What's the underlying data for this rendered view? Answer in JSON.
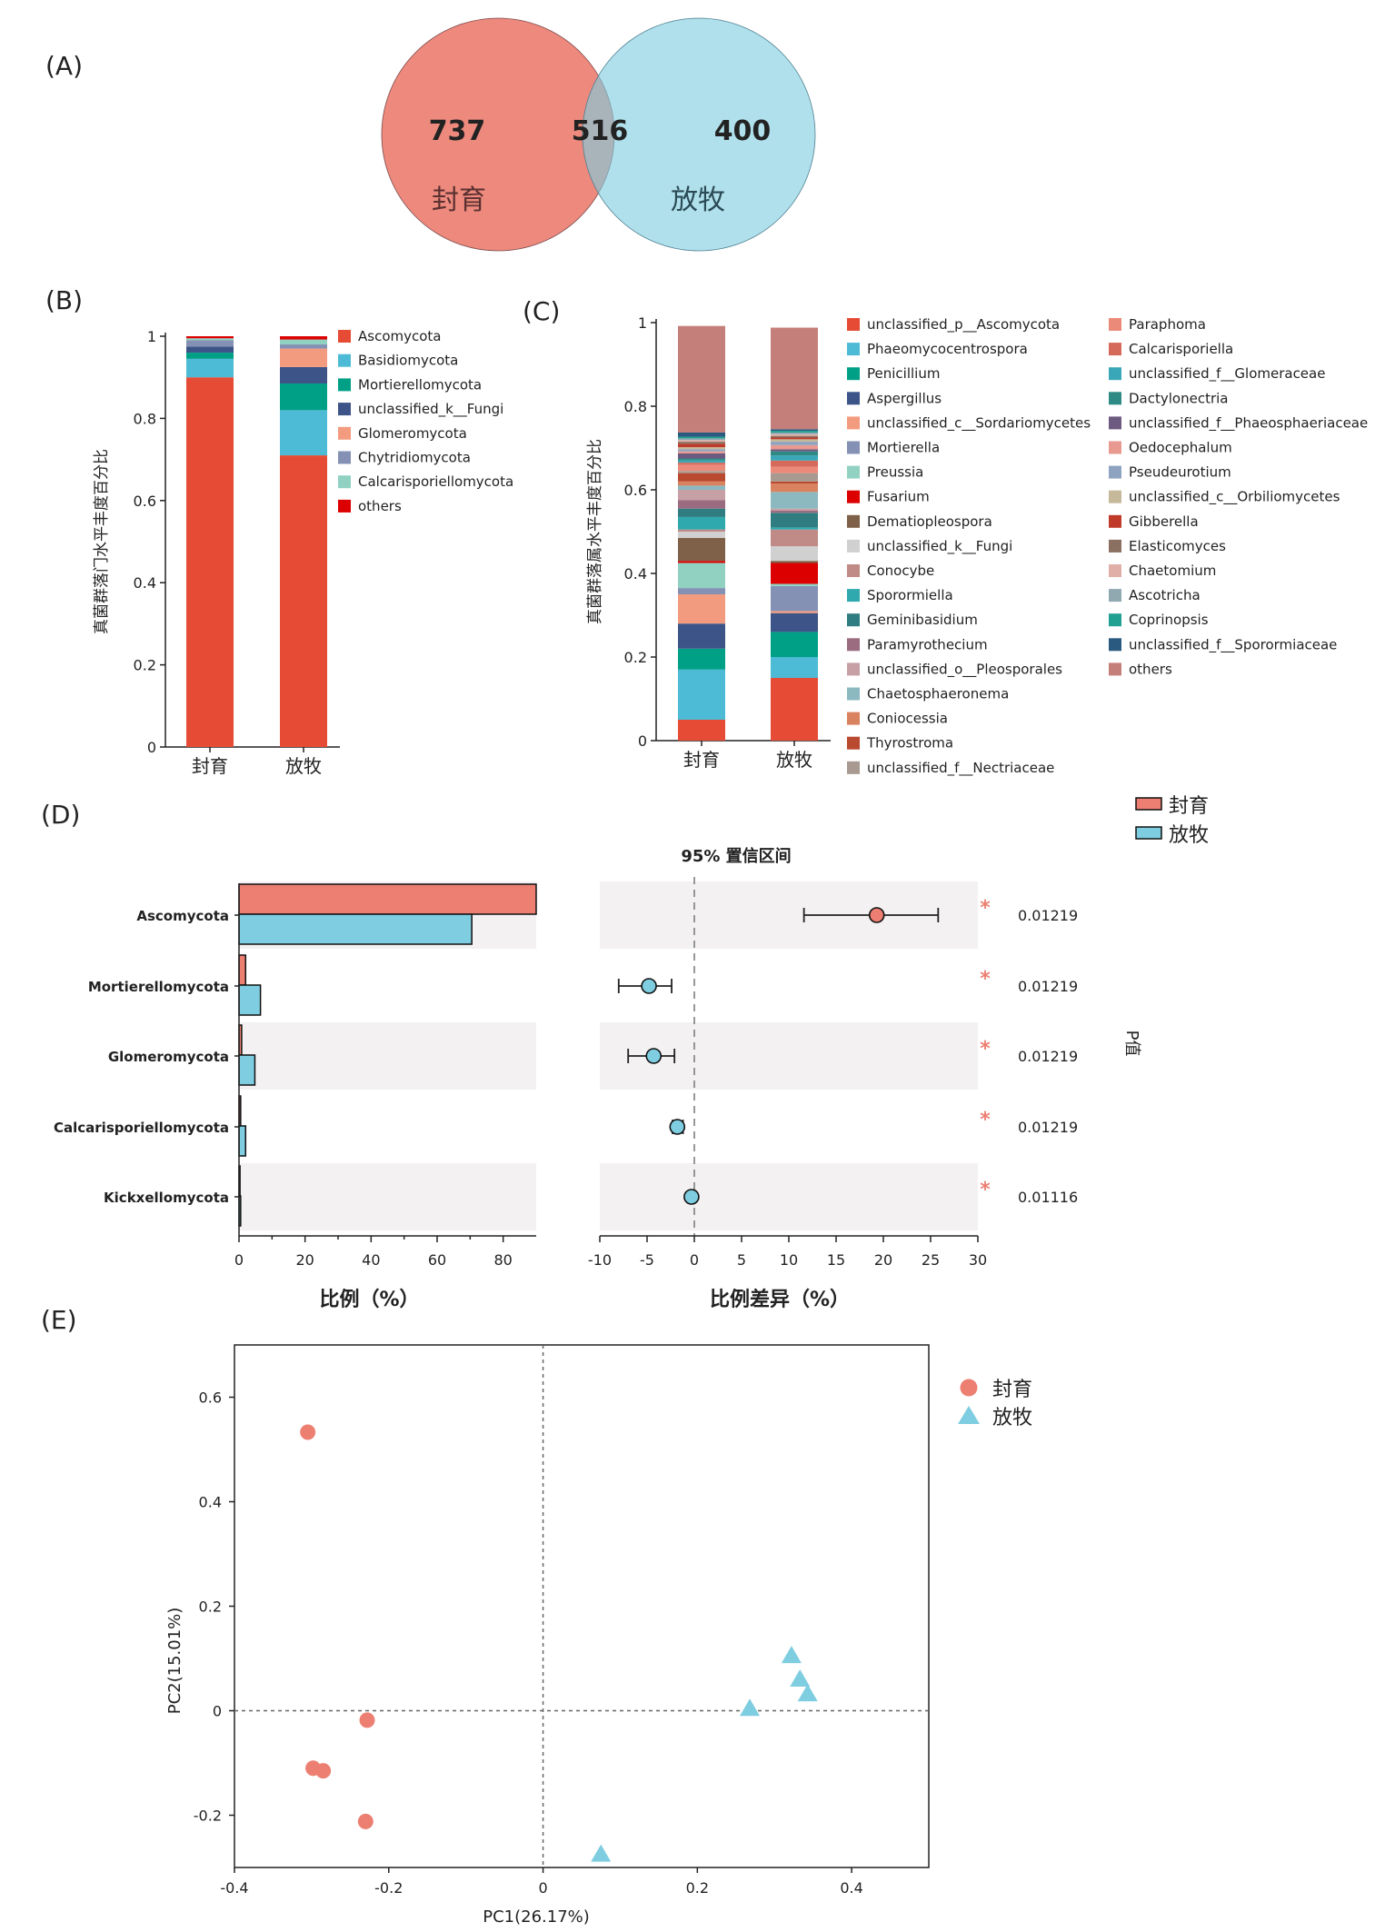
{
  "panels": {
    "A": "(A)",
    "B": "(B)",
    "C": "(C)",
    "D": "(D)",
    "E": "(E)"
  },
  "colors": {
    "fengyu": "#ec7f72",
    "fangmu": "#7fcde0"
  },
  "chart_data": [
    {
      "panel": "A",
      "type": "venn",
      "sets": [
        "封育",
        "放牧"
      ],
      "values": {
        "only_封育": 737,
        "shared": 516,
        "only_放牧": 400
      },
      "colors": [
        "#ec7f72",
        "#7fcde0"
      ]
    },
    {
      "panel": "B",
      "type": "bar",
      "stacked": true,
      "ylabel": "真菌群落门水平丰度百分比",
      "categories": [
        "封育",
        "放牧"
      ],
      "ylim": [
        0,
        1
      ],
      "yticks": [
        0,
        0.2,
        0.4,
        0.6,
        0.8,
        1
      ],
      "ytick_labels": [
        "0",
        "0.2",
        "0.4",
        "0.6",
        "0.8",
        "1"
      ],
      "legend_position": "right",
      "series": [
        {
          "name": "Ascomycota",
          "color": "#e64b35",
          "values": [
            0.9,
            0.71
          ]
        },
        {
          "name": "Basidiomycota",
          "color": "#4dbbd5",
          "values": [
            0.045,
            0.11
          ]
        },
        {
          "name": "Mortierellomycota",
          "color": "#00a087",
          "values": [
            0.015,
            0.065
          ]
        },
        {
          "name": "unclassified_k__Fungi",
          "color": "#3c5488",
          "values": [
            0.015,
            0.04
          ]
        },
        {
          "name": "Glomeromycota",
          "color": "#f39b7f",
          "values": [
            0.0,
            0.045
          ]
        },
        {
          "name": "Chytridiomycota",
          "color": "#8491b4",
          "values": [
            0.015,
            0.01
          ]
        },
        {
          "name": "Calcarisporiellomycota",
          "color": "#91d1c2",
          "values": [
            0.005,
            0.012
          ]
        },
        {
          "name": "others",
          "color": "#dc0000",
          "values": [
            0.005,
            0.008
          ]
        }
      ]
    },
    {
      "panel": "C",
      "type": "bar",
      "stacked": true,
      "ylabel": "真菌群落属水平丰度百分比",
      "categories": [
        "封育",
        "放牧"
      ],
      "ylim": [
        0,
        1
      ],
      "yticks": [
        0,
        0.2,
        0.4,
        0.6,
        0.8,
        1
      ],
      "ytick_labels": [
        "0",
        "0.2",
        "0.4",
        "0.6",
        "0.8",
        "1"
      ],
      "legend_position": "right",
      "series": [
        {
          "name": "unclassified_p__Ascomycota",
          "color": "#e64b35",
          "values": [
            0.05,
            0.15
          ]
        },
        {
          "name": "Phaeomycocentrospora",
          "color": "#4dbbd5",
          "values": [
            0.12,
            0.05
          ]
        },
        {
          "name": "Penicillium",
          "color": "#00a087",
          "values": [
            0.05,
            0.06
          ]
        },
        {
          "name": "Aspergillus",
          "color": "#3c5488",
          "values": [
            0.06,
            0.045
          ]
        },
        {
          "name": "unclassified_c__Sordariomycetes",
          "color": "#f39b7f",
          "values": [
            0.07,
            0.005
          ]
        },
        {
          "name": "Mortierella",
          "color": "#8491b4",
          "values": [
            0.015,
            0.06
          ]
        },
        {
          "name": "Preussia",
          "color": "#91d1c2",
          "values": [
            0.06,
            0.005
          ]
        },
        {
          "name": "Fusarium",
          "color": "#dc0000",
          "values": [
            0.005,
            0.05
          ]
        },
        {
          "name": "Dematiopleospora",
          "color": "#7e6148",
          "values": [
            0.055,
            0.005
          ]
        },
        {
          "name": "unclassified_k__Fungi",
          "color": "#d0d0d0",
          "values": [
            0.015,
            0.035
          ]
        },
        {
          "name": "Conocybe",
          "color": "#c08a86",
          "values": [
            0.005,
            0.04
          ]
        },
        {
          "name": "Sporormiella",
          "color": "#2fa9ad",
          "values": [
            0.03,
            0.005
          ]
        },
        {
          "name": "Geminibasidium",
          "color": "#2f7d80",
          "values": [
            0.02,
            0.035
          ]
        },
        {
          "name": "Paramyrothecium",
          "color": "#9b6b80",
          "values": [
            0.02,
            0.005
          ]
        },
        {
          "name": "unclassified_o__Pleosporales",
          "color": "#c7a0a6",
          "values": [
            0.025,
            0.005
          ]
        },
        {
          "name": "Chaetosphaeronema",
          "color": "#8cb9c0",
          "values": [
            0.01,
            0.04
          ]
        },
        {
          "name": "Coniocessia",
          "color": "#d9825f",
          "values": [
            0.01,
            0.02
          ]
        },
        {
          "name": "Thyrostroma",
          "color": "#b9492f",
          "values": [
            0.02,
            0.005
          ]
        },
        {
          "name": "unclassified_f__Nectriaceae",
          "color": "#a89a91",
          "values": [
            0.005,
            0.02
          ]
        },
        {
          "name": "Paraphoma",
          "color": "#ec8a7a",
          "values": [
            0.015,
            0.015
          ]
        },
        {
          "name": "Calcarisporiella",
          "color": "#d66a5a",
          "values": [
            0.005,
            0.015
          ]
        },
        {
          "name": "unclassified_f__Glomeraceae",
          "color": "#3aa7b8",
          "values": [
            0.005,
            0.012
          ]
        },
        {
          "name": "Dactylonectria",
          "color": "#2e8a84",
          "values": [
            0.005,
            0.01
          ]
        },
        {
          "name": "unclassified_f__Phaeosphaeriaceae",
          "color": "#6c5a80",
          "values": [
            0.012,
            0.005
          ]
        },
        {
          "name": "Oedocephalum",
          "color": "#e89a90",
          "values": [
            0.005,
            0.01
          ]
        },
        {
          "name": "Pseudeurotium",
          "color": "#8ea3c0",
          "values": [
            0.005,
            0.008
          ]
        },
        {
          "name": "unclassified_c__Orbiliomycetes",
          "color": "#c6b89a",
          "values": [
            0.005,
            0.006
          ]
        },
        {
          "name": "Gibberella",
          "color": "#c03a2a",
          "values": [
            0.008,
            0.004
          ]
        },
        {
          "name": "Elasticomyces",
          "color": "#8a7060",
          "values": [
            0.005,
            0.004
          ]
        },
        {
          "name": "Chaetomium",
          "color": "#e0b0a8",
          "values": [
            0.004,
            0.004
          ]
        },
        {
          "name": "Ascotricha",
          "color": "#90a8b0",
          "values": [
            0.004,
            0.004
          ]
        },
        {
          "name": "Coprinopsis",
          "color": "#20a090",
          "values": [
            0.004,
            0.004
          ]
        },
        {
          "name": "unclassified_f__Sporormiaceae",
          "color": "#2a5a80",
          "values": [
            0.01,
            0.004
          ]
        },
        {
          "name": "others",
          "color": "#c47f7a",
          "values": [
            0.255,
            0.243
          ]
        }
      ]
    },
    {
      "panel": "D",
      "type": "bar",
      "subtitle": "95% 置信区间",
      "legend": [
        "封育",
        "放牧"
      ],
      "legend_position": "top-right",
      "categories": [
        "Ascomycota",
        "Mortierellomycota",
        "Glomeromycota",
        "Calcarisporiellomycota",
        "Kickxellomycota"
      ],
      "left": {
        "xlabel": "比例（%）",
        "xlim": [
          0,
          90
        ],
        "xticks": [
          0,
          20,
          40,
          60,
          80
        ],
        "series": [
          {
            "name": "封育",
            "values": [
              90,
              2,
              0.8,
              0.5,
              0.3
            ]
          },
          {
            "name": "放牧",
            "values": [
              70.5,
              6.5,
              4.8,
              2.0,
              0.5
            ]
          }
        ]
      },
      "right": {
        "xlabel": "比例差异（%）",
        "xlim": [
          -10,
          30
        ],
        "xticks": [
          -10,
          -5,
          0,
          5,
          10,
          15,
          20,
          25,
          30
        ],
        "diff": [
          19.3,
          -4.8,
          -4.3,
          -1.8,
          -0.3
        ],
        "ci_low": [
          11.6,
          -8.0,
          -7.0,
          -2.3,
          -0.5
        ],
        "ci_high": [
          25.8,
          -2.4,
          -2.1,
          -1.2,
          -0.1
        ],
        "point_group": [
          "封育",
          "放牧",
          "放牧",
          "放牧",
          "放牧"
        ]
      },
      "significance": [
        "*",
        "*",
        "*",
        "*",
        "*"
      ],
      "p_values": [
        "0.01219",
        "0.01219",
        "0.01219",
        "0.01219",
        "0.01116"
      ],
      "p_axis_label": "P值"
    },
    {
      "panel": "E",
      "type": "scatter",
      "xlabel": "PC1(26.17%)",
      "ylabel": "PC2(15.01%)",
      "xlim": [
        -0.4,
        0.5
      ],
      "ylim": [
        -0.3,
        0.7
      ],
      "xticks": [
        -0.4,
        -0.2,
        0,
        0.2,
        0.4
      ],
      "xtick_labels": [
        "-0.4",
        "-0.2",
        "0",
        "0.2",
        "0.4"
      ],
      "yticks": [
        -0.2,
        0,
        0.2,
        0.4,
        0.6
      ],
      "ytick_labels": [
        "-0.2",
        "0",
        "0.2",
        "0.4",
        "0.6"
      ],
      "legend_position": "top-right",
      "series": [
        {
          "name": "封育",
          "marker": "circle",
          "color": "#ec7f72",
          "x": [
            -0.305,
            -0.228,
            -0.298,
            -0.285,
            -0.23
          ],
          "y": [
            0.533,
            -0.018,
            -0.11,
            -0.115,
            -0.212
          ]
        },
        {
          "name": "放牧",
          "marker": "triangle",
          "color": "#7fcde0",
          "x": [
            0.322,
            0.333,
            0.343,
            0.268,
            0.075
          ],
          "y": [
            0.105,
            0.06,
            0.032,
            0.004,
            -0.275
          ]
        }
      ]
    }
  ]
}
